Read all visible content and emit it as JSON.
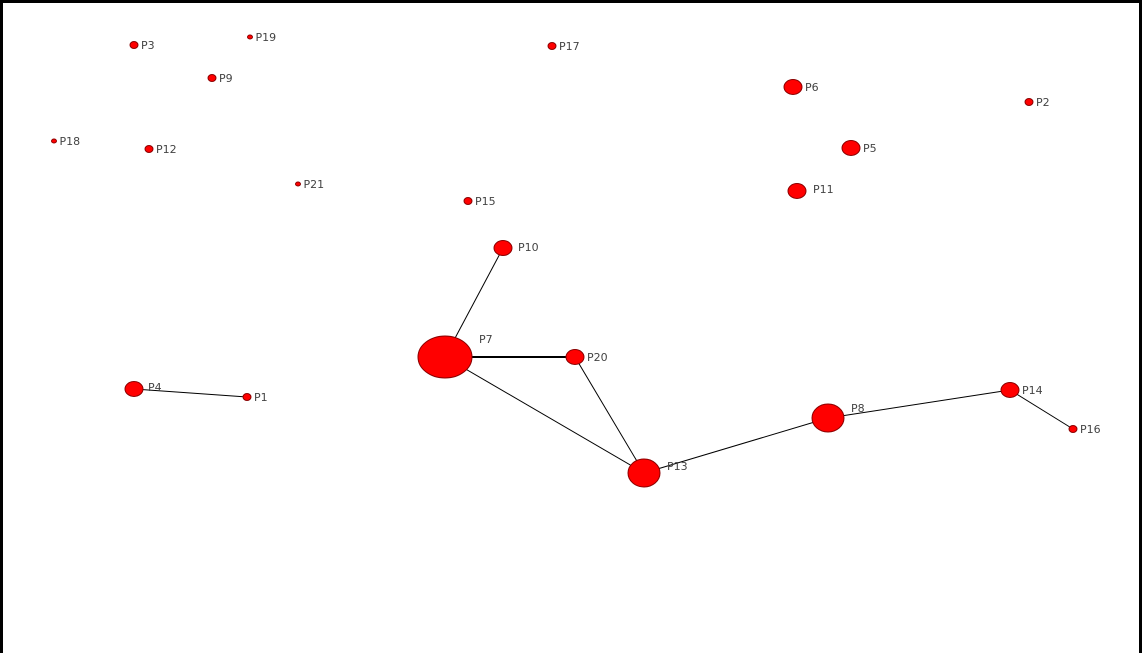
{
  "node_color": "#ff0000",
  "node_stroke": "#8b0000",
  "edge_color": "#000000",
  "nodes": [
    {
      "id": "P1",
      "label": "P1",
      "size": "small"
    },
    {
      "id": "P2",
      "label": "P2",
      "size": "small"
    },
    {
      "id": "P3",
      "label": "P3",
      "size": "small"
    },
    {
      "id": "P4",
      "label": "P4",
      "size": "medium"
    },
    {
      "id": "P5",
      "label": "P5",
      "size": "medium"
    },
    {
      "id": "P6",
      "label": "P6",
      "size": "medium"
    },
    {
      "id": "P7",
      "label": "P7",
      "size": "xlarge"
    },
    {
      "id": "P8",
      "label": "P8",
      "size": "large"
    },
    {
      "id": "P9",
      "label": "P9",
      "size": "small"
    },
    {
      "id": "P10",
      "label": "P10",
      "size": "medium"
    },
    {
      "id": "P11",
      "label": "P11",
      "size": "medium"
    },
    {
      "id": "P12",
      "label": "P12",
      "size": "small"
    },
    {
      "id": "P13",
      "label": "P13",
      "size": "large"
    },
    {
      "id": "P14",
      "label": "P14",
      "size": "medium"
    },
    {
      "id": "P15",
      "label": "P15",
      "size": "small"
    },
    {
      "id": "P16",
      "label": "P16",
      "size": "small"
    },
    {
      "id": "P17",
      "label": "P17",
      "size": "small"
    },
    {
      "id": "P18",
      "label": "P18",
      "size": "tiny"
    },
    {
      "id": "P19",
      "label": "P19",
      "size": "tiny"
    },
    {
      "id": "P20",
      "label": "P20",
      "size": "medium"
    },
    {
      "id": "P21",
      "label": "P21",
      "size": "tiny"
    }
  ],
  "edges": [
    {
      "source": "P4",
      "target": "P1",
      "weight": "thin"
    },
    {
      "source": "P7",
      "target": "P10",
      "weight": "thin"
    },
    {
      "source": "P7",
      "target": "P20",
      "weight": "thick"
    },
    {
      "source": "P7",
      "target": "P13",
      "weight": "thin"
    },
    {
      "source": "P20",
      "target": "P13",
      "weight": "thin"
    },
    {
      "source": "P13",
      "target": "P8",
      "weight": "thin"
    },
    {
      "source": "P8",
      "target": "P14",
      "weight": "thin"
    },
    {
      "source": "P14",
      "target": "P16",
      "weight": "thin"
    }
  ]
}
